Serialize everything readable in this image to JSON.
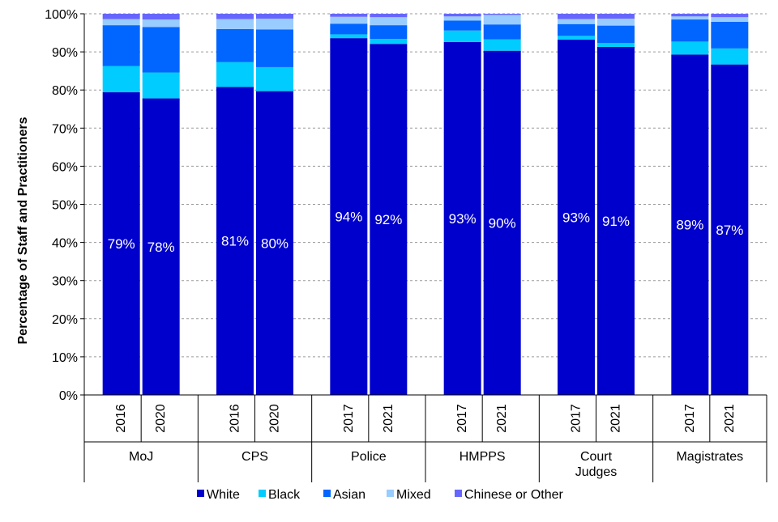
{
  "chart_data": {
    "type": "bar",
    "stacked": true,
    "ylabel": "Percentage of Staff and Practitioners",
    "ylim": [
      0,
      100
    ],
    "yticks": [
      "0%",
      "10%",
      "20%",
      "30%",
      "40%",
      "50%",
      "60%",
      "70%",
      "80%",
      "90%",
      "100%"
    ],
    "grid": "horizontal dashed",
    "legend_position": "bottom",
    "groups": [
      {
        "name": "MoJ",
        "years": [
          "2016",
          "2020"
        ]
      },
      {
        "name": "CPS",
        "years": [
          "2016",
          "2020"
        ]
      },
      {
        "name": "Police",
        "years": [
          "2017",
          "2021"
        ]
      },
      {
        "name": "HMPPS",
        "years": [
          "2017",
          "2021"
        ]
      },
      {
        "name": "Court Judges",
        "years": [
          "2017",
          "2021"
        ]
      },
      {
        "name": "Magistrates",
        "years": [
          "2017",
          "2021"
        ]
      }
    ],
    "series": [
      {
        "name": "White",
        "color": "#0000CC",
        "values": [
          79.4,
          77.8,
          80.8,
          79.7,
          93.6,
          92.1,
          92.6,
          90.3,
          93.2,
          91.3,
          89.3,
          86.7
        ],
        "labels": [
          "79%",
          "78%",
          "81%",
          "80%",
          "94%",
          "92%",
          "93%",
          "90%",
          "93%",
          "91%",
          "89%",
          "87%"
        ]
      },
      {
        "name": "Black",
        "color": "#00CCFF",
        "values": [
          6.9,
          6.8,
          6.5,
          6.3,
          1.0,
          1.3,
          3.0,
          3.0,
          1.0,
          1.0,
          3.4,
          4.2
        ]
      },
      {
        "name": "Asian",
        "color": "#0066FF",
        "values": [
          10.7,
          11.9,
          8.7,
          9.9,
          2.8,
          3.6,
          2.6,
          3.9,
          3.1,
          4.6,
          5.8,
          7.0
        ]
      },
      {
        "name": "Mixed",
        "color": "#99CCFF",
        "values": [
          1.6,
          2.0,
          2.6,
          2.8,
          1.8,
          2.1,
          1.1,
          2.5,
          1.3,
          1.8,
          0.8,
          1.2
        ]
      },
      {
        "name": "Chinese or Other",
        "color": "#6666FF",
        "values": [
          1.4,
          1.5,
          1.4,
          1.3,
          0.8,
          0.9,
          0.7,
          0.3,
          1.4,
          1.3,
          0.7,
          0.9
        ]
      }
    ]
  }
}
